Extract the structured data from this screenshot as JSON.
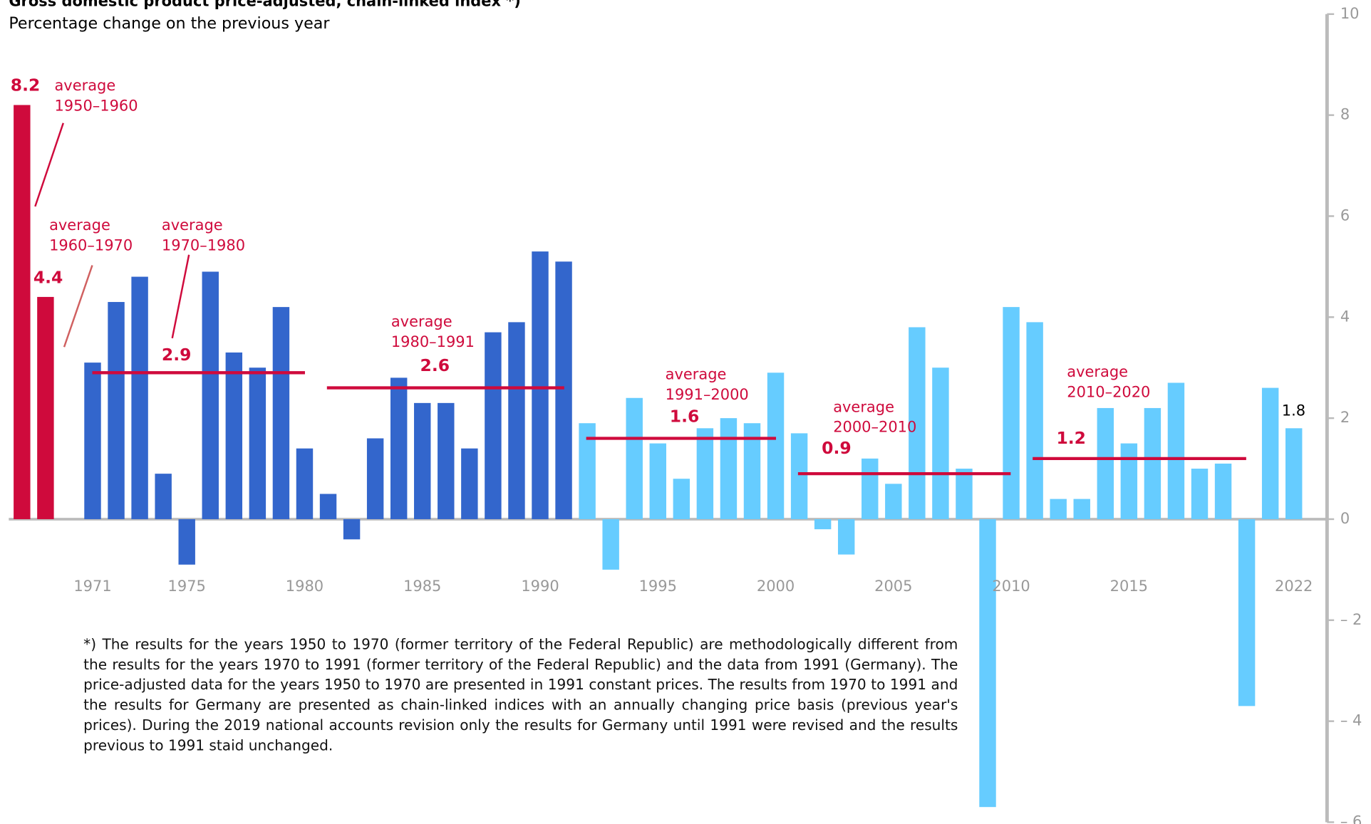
{
  "chart_data": {
    "type": "bar",
    "title": "Gross domestic product price-adjusted, chain-linked index *)",
    "subtitle": "Percentage change on the previous year",
    "categories": [
      null,
      null,
      null,
      "1971",
      null,
      null,
      null,
      "1975",
      null,
      null,
      null,
      null,
      "1980",
      null,
      null,
      null,
      null,
      "1985",
      null,
      null,
      null,
      null,
      "1990",
      null,
      null,
      null,
      null,
      "1995",
      null,
      null,
      null,
      null,
      "2000",
      null,
      null,
      null,
      null,
      "2005",
      null,
      null,
      null,
      null,
      "2010",
      null,
      null,
      null,
      null,
      "2015",
      null,
      null,
      null,
      null,
      null,
      null,
      "2022"
    ],
    "values": [
      8.2,
      4.4,
      null,
      3.1,
      4.3,
      4.8,
      0.9,
      -0.9,
      4.9,
      3.3,
      3.0,
      4.2,
      1.4,
      0.5,
      -0.4,
      1.6,
      2.8,
      2.3,
      2.3,
      1.4,
      3.7,
      3.9,
      5.3,
      5.1,
      1.9,
      -1.0,
      2.4,
      1.5,
      0.8,
      1.8,
      2.0,
      1.9,
      2.9,
      1.7,
      -0.2,
      -0.7,
      1.2,
      0.7,
      3.8,
      3.0,
      1.0,
      -5.7,
      4.2,
      3.9,
      0.4,
      0.4,
      2.2,
      1.5,
      2.2,
      2.7,
      1.0,
      1.1,
      -3.7,
      2.6,
      1.8
    ],
    "colors": [
      "#cf0a3c",
      "#cf0a3c",
      null,
      "#3366cc",
      "#3366cc",
      "#3366cc",
      "#3366cc",
      "#3366cc",
      "#3366cc",
      "#3366cc",
      "#3366cc",
      "#3366cc",
      "#3366cc",
      "#3366cc",
      "#3366cc",
      "#3366cc",
      "#3366cc",
      "#3366cc",
      "#3366cc",
      "#3366cc",
      "#3366cc",
      "#3366cc",
      "#3366cc",
      "#3366cc",
      "#66ccff",
      "#66ccff",
      "#66ccff",
      "#66ccff",
      "#66ccff",
      "#66ccff",
      "#66ccff",
      "#66ccff",
      "#66ccff",
      "#66ccff",
      "#66ccff",
      "#66ccff",
      "#66ccff",
      "#66ccff",
      "#66ccff",
      "#66ccff",
      "#66ccff",
      "#66ccff",
      "#66ccff",
      "#66ccff",
      "#66ccff",
      "#66ccff",
      "#66ccff",
      "#66ccff",
      "#66ccff",
      "#66ccff",
      "#66ccff",
      "#66ccff",
      "#66ccff",
      "#66ccff",
      "#66ccff"
    ],
    "bar_annotations": [
      [
        "average",
        "1950–1960"
      ],
      [
        "average",
        "1960–1970"
      ]
    ],
    "averages": [
      {
        "label": [
          "average",
          "1970–1980"
        ],
        "value": 2.9
      },
      {
        "label": [
          "average",
          "1980–1991"
        ],
        "value": 2.6
      },
      {
        "label": [
          "average",
          "1991–2000"
        ],
        "value": 1.6
      },
      {
        "label": [
          "average",
          "2000–2010"
        ],
        "value": 0.9
      },
      {
        "label": [
          "average",
          "2010–2020"
        ],
        "value": 1.2
      }
    ],
    "average_color": "#cf0a3c",
    "ylim": [
      -6,
      10
    ],
    "yticks": [
      10,
      8,
      6,
      4,
      2,
      0,
      {
        "value": -2,
        "label": "– 2"
      },
      {
        "value": -4,
        "label": "– 4"
      },
      {
        "value": -6,
        "label": "– 6"
      }
    ],
    "footnote": "*) The results for the years 1950 to 1970 (former territory of the Federal Republic) are methodologically different from the results for the years 1970 to 1991 (former territory of the Federal Republic) and the data from 1991 (Germany). The price-adjusted data for the years 1950 to 1970 are presented in 1991 constant prices. The results from 1970 to 1991 and the results for Germany are presented as chain-linked indices with an annually changing price basis (previous year's prices). During the 2019 national accounts revision only the results for Germany until 1991 were revised and the results previous to 1991 staid unchanged."
  }
}
